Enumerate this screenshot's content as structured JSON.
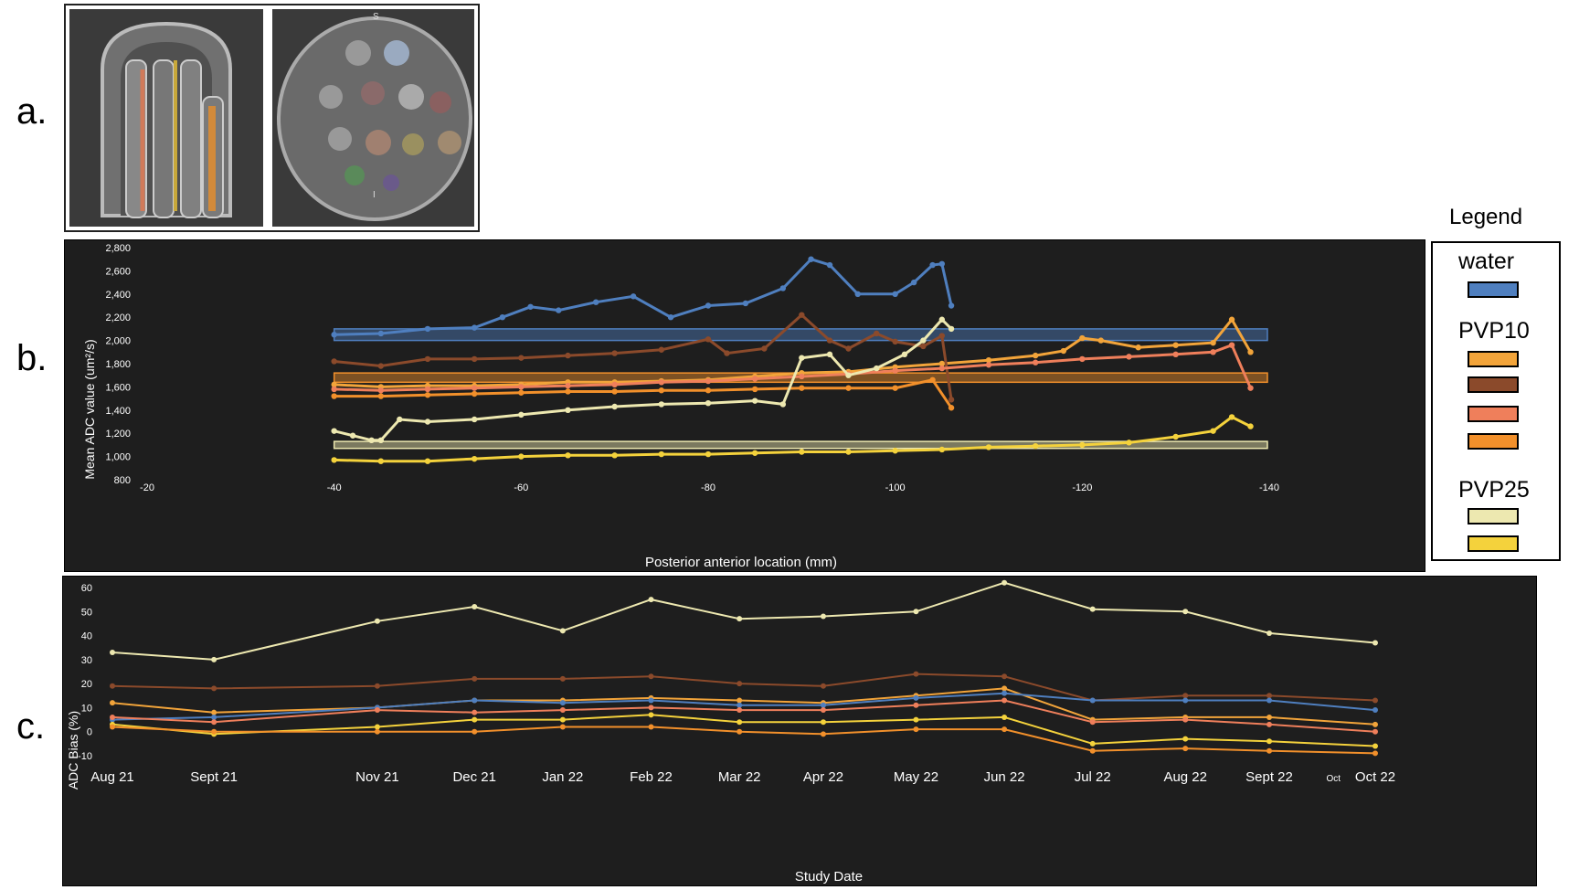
{
  "panel_labels": {
    "a": "a.",
    "b": "b.",
    "c": "c."
  },
  "mri": {
    "sagittal_marker": "S",
    "inferior_marker": "I"
  },
  "legend": {
    "title": "Legend",
    "groups": [
      {
        "name": "water",
        "colors": [
          "#4f7fbf"
        ]
      },
      {
        "name": "PVP10",
        "colors": [
          "#f2a43a",
          "#8b4a2b",
          "#ef7f5b",
          "#f2902b"
        ]
      },
      {
        "name": "PVP25",
        "colors": [
          "#ede8b0",
          "#f4d23c"
        ]
      }
    ]
  },
  "chart_data": [
    {
      "type": "line",
      "title": "",
      "xlabel": "Posterior anterior location (mm)",
      "ylabel": "Mean ADC value (um²/s)",
      "xlim": [
        -20,
        -140
      ],
      "ylim": [
        800,
        2800
      ],
      "x_ticks": [
        -20,
        -40,
        -60,
        -80,
        -100,
        -120,
        -140
      ],
      "y_ticks": [
        800,
        1000,
        1200,
        1400,
        1600,
        1800,
        2000,
        2200,
        2400,
        2600,
        2800
      ],
      "y_tick_labels": [
        "800",
        "1,000",
        "1,200",
        "1,400",
        "1,600",
        "1,800",
        "2,000",
        "2,200",
        "2,400",
        "2,600",
        "2,800"
      ],
      "reference_bands": [
        {
          "name": "water",
          "range": [
            2000,
            2100
          ],
          "color": "#4f7fbf"
        },
        {
          "name": "PVP10",
          "range": [
            1640,
            1720
          ],
          "color": "#f2902b"
        },
        {
          "name": "PVP25",
          "range": [
            1070,
            1130
          ],
          "color": "#ede8b0"
        }
      ],
      "series": [
        {
          "name": "water",
          "color": "#4f7fbf",
          "points": [
            [
              -40,
              2050
            ],
            [
              -45,
              2060
            ],
            [
              -50,
              2100
            ],
            [
              -55,
              2110
            ],
            [
              -58,
              2200
            ],
            [
              -61,
              2290
            ],
            [
              -64,
              2260
            ],
            [
              -68,
              2330
            ],
            [
              -72,
              2380
            ],
            [
              -76,
              2200
            ],
            [
              -80,
              2300
            ],
            [
              -84,
              2320
            ],
            [
              -88,
              2450
            ],
            [
              -91,
              2700
            ],
            [
              -93,
              2650
            ],
            [
              -96,
              2400
            ],
            [
              -100,
              2400
            ],
            [
              -102,
              2500
            ],
            [
              -104,
              2650
            ],
            [
              -105,
              2660
            ],
            [
              -106,
              2300
            ]
          ]
        },
        {
          "name": "PVP10-a",
          "color": "#f2a43a",
          "points": [
            [
              -40,
              1620
            ],
            [
              -45,
              1600
            ],
            [
              -50,
              1610
            ],
            [
              -55,
              1610
            ],
            [
              -60,
              1620
            ],
            [
              -65,
              1640
            ],
            [
              -70,
              1640
            ],
            [
              -75,
              1650
            ],
            [
              -80,
              1660
            ],
            [
              -85,
              1690
            ],
            [
              -90,
              1720
            ],
            [
              -95,
              1730
            ],
            [
              -100,
              1770
            ],
            [
              -105,
              1800
            ],
            [
              -110,
              1830
            ],
            [
              -115,
              1870
            ],
            [
              -118,
              1910
            ],
            [
              -120,
              2020
            ],
            [
              -122,
              2000
            ],
            [
              -126,
              1940
            ],
            [
              -130,
              1960
            ],
            [
              -134,
              1980
            ],
            [
              -136,
              2180
            ],
            [
              -138,
              1900
            ]
          ]
        },
        {
          "name": "PVP10-b",
          "color": "#8b4a2b",
          "points": [
            [
              -40,
              1820
            ],
            [
              -45,
              1780
            ],
            [
              -50,
              1840
            ],
            [
              -55,
              1840
            ],
            [
              -60,
              1850
            ],
            [
              -65,
              1870
            ],
            [
              -70,
              1890
            ],
            [
              -75,
              1920
            ],
            [
              -80,
              2010
            ],
            [
              -82,
              1890
            ],
            [
              -86,
              1930
            ],
            [
              -90,
              2220
            ],
            [
              -93,
              2000
            ],
            [
              -95,
              1930
            ],
            [
              -98,
              2060
            ],
            [
              -100,
              1990
            ],
            [
              -103,
              1950
            ],
            [
              -105,
              2040
            ],
            [
              -106,
              1490
            ]
          ]
        },
        {
          "name": "PVP10-c",
          "color": "#ef7f5b",
          "points": [
            [
              -40,
              1580
            ],
            [
              -45,
              1570
            ],
            [
              -50,
              1580
            ],
            [
              -55,
              1590
            ],
            [
              -60,
              1600
            ],
            [
              -65,
              1610
            ],
            [
              -70,
              1620
            ],
            [
              -75,
              1640
            ],
            [
              -80,
              1650
            ],
            [
              -85,
              1670
            ],
            [
              -90,
              1690
            ],
            [
              -95,
              1710
            ],
            [
              -100,
              1740
            ],
            [
              -105,
              1760
            ],
            [
              -110,
              1790
            ],
            [
              -115,
              1810
            ],
            [
              -120,
              1840
            ],
            [
              -125,
              1860
            ],
            [
              -130,
              1880
            ],
            [
              -134,
              1900
            ],
            [
              -136,
              1960
            ],
            [
              -138,
              1590
            ]
          ]
        },
        {
          "name": "PVP10-d",
          "color": "#f2902b",
          "points": [
            [
              -40,
              1520
            ],
            [
              -45,
              1520
            ],
            [
              -50,
              1530
            ],
            [
              -55,
              1540
            ],
            [
              -60,
              1550
            ],
            [
              -65,
              1560
            ],
            [
              -70,
              1560
            ],
            [
              -75,
              1570
            ],
            [
              -80,
              1570
            ],
            [
              -85,
              1580
            ],
            [
              -90,
              1590
            ],
            [
              -95,
              1590
            ],
            [
              -100,
              1590
            ],
            [
              -104,
              1660
            ],
            [
              -106,
              1420
            ]
          ]
        },
        {
          "name": "PVP25-a",
          "color": "#ede8b0",
          "points": [
            [
              -40,
              1220
            ],
            [
              -42,
              1180
            ],
            [
              -44,
              1140
            ],
            [
              -45,
              1140
            ],
            [
              -47,
              1320
            ],
            [
              -50,
              1300
            ],
            [
              -55,
              1320
            ],
            [
              -60,
              1360
            ],
            [
              -65,
              1400
            ],
            [
              -70,
              1430
            ],
            [
              -75,
              1450
            ],
            [
              -80,
              1460
            ],
            [
              -85,
              1480
            ],
            [
              -88,
              1450
            ],
            [
              -90,
              1850
            ],
            [
              -93,
              1880
            ],
            [
              -95,
              1700
            ],
            [
              -98,
              1760
            ],
            [
              -101,
              1880
            ],
            [
              -103,
              2000
            ],
            [
              -105,
              2180
            ],
            [
              -106,
              2100
            ]
          ]
        },
        {
          "name": "PVP25-b",
          "color": "#f4d23c",
          "points": [
            [
              -40,
              970
            ],
            [
              -45,
              960
            ],
            [
              -50,
              960
            ],
            [
              -55,
              980
            ],
            [
              -60,
              1000
            ],
            [
              -65,
              1010
            ],
            [
              -70,
              1010
            ],
            [
              -75,
              1020
            ],
            [
              -80,
              1020
            ],
            [
              -85,
              1030
            ],
            [
              -90,
              1040
            ],
            [
              -95,
              1040
            ],
            [
              -100,
              1050
            ],
            [
              -105,
              1060
            ],
            [
              -110,
              1080
            ],
            [
              -115,
              1090
            ],
            [
              -120,
              1100
            ],
            [
              -125,
              1120
            ],
            [
              -130,
              1170
            ],
            [
              -134,
              1220
            ],
            [
              -136,
              1340
            ],
            [
              -138,
              1260
            ]
          ]
        }
      ]
    },
    {
      "type": "line",
      "title": "",
      "xlabel": "Study Date",
      "ylabel": "ADC Bias (%)",
      "ylim": [
        -10,
        60
      ],
      "y_ticks": [
        -10,
        0,
        10,
        20,
        30,
        40,
        50,
        60
      ],
      "categories": [
        "Aug 21",
        "Sept 21",
        "Nov 21",
        "Dec 21",
        "Jan 22",
        "Feb 22",
        "Mar 22",
        "Apr 22",
        "May 22",
        "Jun 22",
        "Jul 22",
        "Aug 22",
        "Sept 22",
        "Oct 22"
      ],
      "last_category_prefix": "Oct",
      "category_positions": [
        0,
        1.15,
        3.0,
        4.1,
        5.1,
        6.1,
        7.1,
        8.05,
        9.1,
        10.1,
        11.1,
        12.15,
        13.1,
        14.3
      ],
      "series": [
        {
          "name": "PVP25-a",
          "color": "#ede8b0",
          "values": [
            33,
            30,
            46,
            52,
            42,
            55,
            47,
            48,
            50,
            62,
            51,
            50,
            41,
            37
          ]
        },
        {
          "name": "PVP10-b",
          "color": "#8b4a2b",
          "values": [
            19,
            18,
            19,
            22,
            22,
            23,
            20,
            19,
            24,
            23,
            13,
            15,
            15,
            13
          ]
        },
        {
          "name": "PVP10-a",
          "color": "#f2a43a",
          "values": [
            12,
            8,
            10,
            13,
            13,
            14,
            13,
            12,
            15,
            18,
            5,
            6,
            6,
            3
          ]
        },
        {
          "name": "water",
          "color": "#4f7fbf",
          "values": [
            5,
            6,
            10,
            13,
            12,
            13,
            11,
            11,
            14,
            16,
            13,
            13,
            13,
            9
          ]
        },
        {
          "name": "PVP10-c",
          "color": "#ef7f5b",
          "values": [
            6,
            4,
            9,
            8,
            9,
            10,
            9,
            9,
            11,
            13,
            4,
            5,
            3,
            0
          ]
        },
        {
          "name": "PVP25-b",
          "color": "#f4d23c",
          "values": [
            3,
            -1,
            2,
            5,
            5,
            7,
            4,
            4,
            5,
            6,
            -5,
            -3,
            -4,
            -6
          ]
        },
        {
          "name": "PVP10-d",
          "color": "#f2902b",
          "values": [
            2,
            0,
            0,
            0,
            2,
            2,
            0,
            -1,
            1,
            1,
            -8,
            -7,
            -8,
            -9
          ]
        }
      ]
    }
  ]
}
